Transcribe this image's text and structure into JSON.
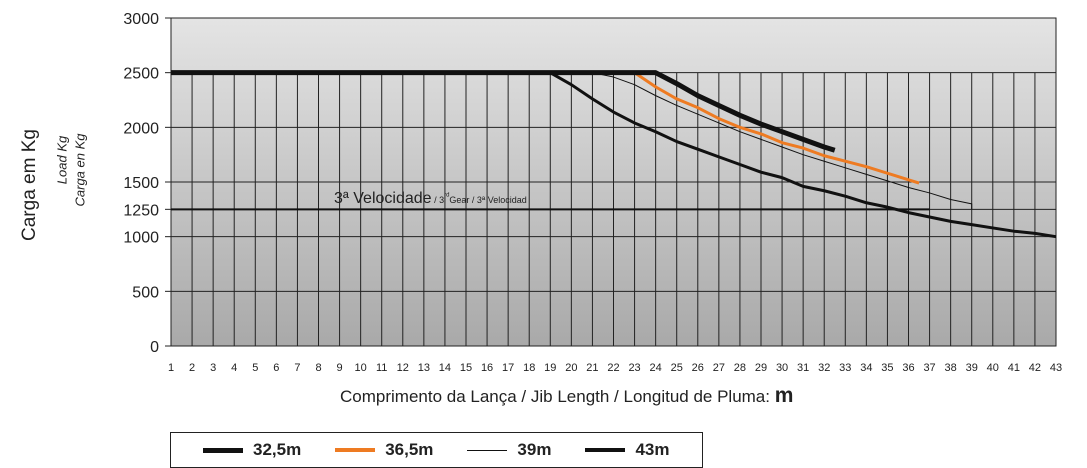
{
  "chart_data": {
    "type": "line",
    "title": "",
    "ylabel": "Carga em Kg",
    "ylabel_sub1": "Load Kg",
    "ylabel_sub2": "Carga en Kg",
    "xlabel": "Comprimento da Lança / Jib Length / Longitud de Pluma:",
    "xlabel_unit": "m",
    "xlim": [
      1,
      43
    ],
    "ylim": [
      0,
      3000
    ],
    "yticks": [
      0,
      500,
      1000,
      1250,
      1500,
      2000,
      2500,
      3000
    ],
    "xticks": [
      1,
      2,
      3,
      4,
      5,
      6,
      7,
      8,
      9,
      10,
      11,
      12,
      13,
      14,
      15,
      16,
      17,
      18,
      19,
      20,
      21,
      22,
      23,
      24,
      25,
      26,
      27,
      28,
      29,
      30,
      31,
      32,
      33,
      34,
      35,
      36,
      37,
      38,
      39,
      40,
      41,
      42,
      43
    ],
    "grid": true,
    "legend_position": "bottom",
    "reference_line": {
      "y": 1250,
      "label_main": "3ª Velocidade",
      "label_prefix": " / 3",
      "label_sup": "rd",
      "label_rest": "Gear / 3ª Velocidad"
    },
    "series": [
      {
        "name": "32,5m",
        "color": "#111111",
        "line_width": 5,
        "x": [
          1,
          24,
          25,
          26,
          27,
          28,
          29,
          30,
          31,
          32,
          32.5
        ],
        "y": [
          2500,
          2500,
          2400,
          2290,
          2200,
          2110,
          2030,
          1960,
          1890,
          1820,
          1790
        ]
      },
      {
        "name": "36,5m",
        "color": "#ee7b22",
        "line_width": 3,
        "x": [
          1,
          23,
          24,
          25,
          26,
          27,
          28,
          29,
          30,
          31,
          32,
          33,
          34,
          35,
          36,
          36.5
        ],
        "y": [
          2500,
          2500,
          2370,
          2260,
          2180,
          2080,
          2000,
          1940,
          1860,
          1810,
          1740,
          1690,
          1640,
          1580,
          1520,
          1490
        ]
      },
      {
        "name": "39m",
        "color": "#111111",
        "line_width": 1,
        "x": [
          1,
          21,
          22,
          23,
          24,
          25,
          26,
          27,
          28,
          29,
          30,
          31,
          32,
          33,
          34,
          35,
          36,
          37,
          38,
          39,
          39
        ],
        "y": [
          2500,
          2500,
          2460,
          2390,
          2290,
          2200,
          2120,
          2040,
          1960,
          1890,
          1820,
          1750,
          1690,
          1630,
          1570,
          1510,
          1450,
          1400,
          1340,
          1300,
          1250
        ]
      },
      {
        "name": "43m",
        "color": "#111111",
        "line_width": 3,
        "x": [
          1,
          19,
          20,
          21,
          22,
          23,
          24,
          25,
          26,
          27,
          28,
          29,
          30,
          31,
          32,
          33,
          34,
          35,
          36,
          37,
          38,
          39,
          40,
          41,
          42,
          43
        ],
        "y": [
          2500,
          2500,
          2390,
          2260,
          2140,
          2040,
          1960,
          1870,
          1800,
          1730,
          1660,
          1590,
          1540,
          1460,
          1420,
          1370,
          1310,
          1270,
          1220,
          1180,
          1140,
          1110,
          1080,
          1050,
          1030,
          1000
        ]
      }
    ]
  }
}
